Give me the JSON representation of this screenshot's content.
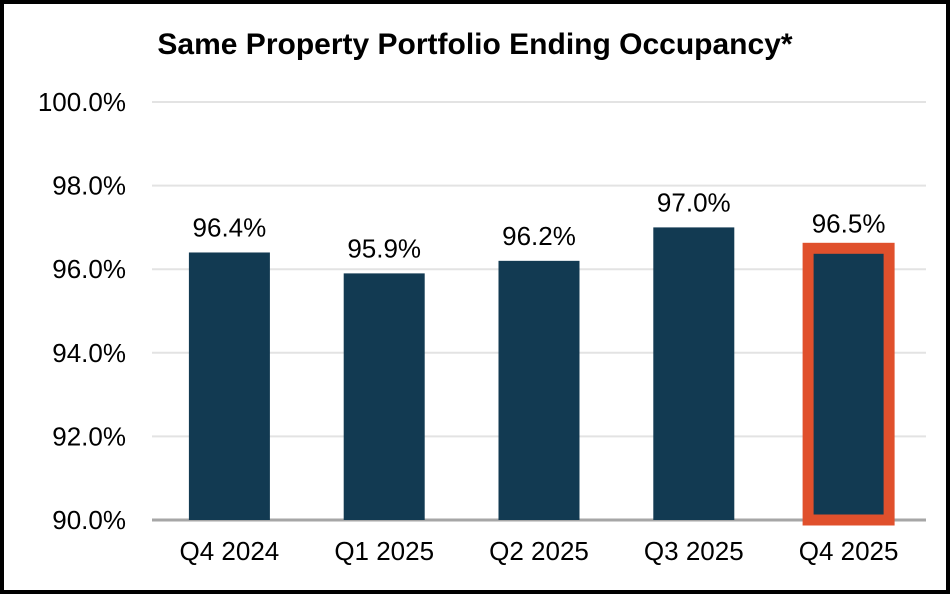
{
  "chart_data": {
    "type": "bar",
    "title": "Same Property Portfolio Ending Occupancy*",
    "categories": [
      "Q4 2024",
      "Q1 2025",
      "Q2 2025",
      "Q3 2025",
      "Q4 2025"
    ],
    "values": [
      96.4,
      95.9,
      96.2,
      97.0,
      96.5
    ],
    "value_labels": [
      "96.4%",
      "95.9%",
      "96.2%",
      "97.0%",
      "96.5%"
    ],
    "xlabel": "",
    "ylabel": "",
    "ylim": [
      90,
      100
    ],
    "yticks": [
      90,
      92,
      94,
      96,
      98,
      100
    ],
    "ytick_labels": [
      "90.0%",
      "92.0%",
      "94.0%",
      "96.0%",
      "98.0%",
      "100.0%"
    ],
    "grid": true,
    "legend": "none",
    "highlight_index": 4,
    "colors": {
      "bar": "#123A52",
      "highlight_outline": "#E0502C",
      "gridline": "#E3E3E3",
      "axis_line": "#A6A6A6",
      "text": "#000000",
      "background": "#FFFFFF",
      "frame_border": "#000000"
    }
  }
}
